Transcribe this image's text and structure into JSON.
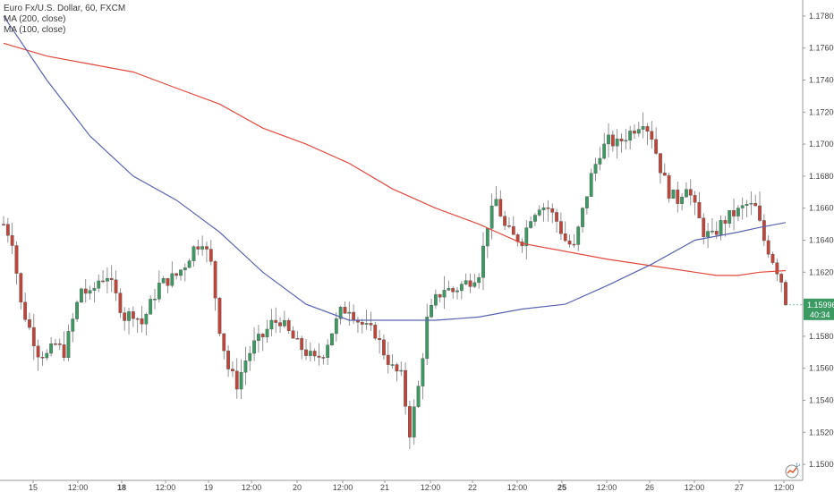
{
  "header": {
    "symbol_line": "Euro Fx/U.S. Dollar, 60, FXCM",
    "indicator_1": "MA (200, close)",
    "indicator_2": "MA (100, close)"
  },
  "badges": {
    "price": "1.15996",
    "countdown": "40:34",
    "logo_count": "14"
  },
  "colors": {
    "up_candle": "#3a9a62",
    "down_candle": "#c24438",
    "wick": "#777777",
    "ma200": "#e04a3f",
    "ma100": "#5a63b0",
    "price_badge": "#3a9a62",
    "grid": "#e6e6e6"
  },
  "chart_data": {
    "type": "candlestick",
    "symbol": "Euro Fx/U.S. Dollar",
    "timeframe": "60",
    "source": "FXCM",
    "ylim": [
      1.149,
      1.179
    ],
    "y_ticks": [
      "1.15000",
      "1.15200",
      "1.15400",
      "1.15600",
      "1.15800",
      "1.16000",
      "1.16200",
      "1.16400",
      "1.16600",
      "1.16800",
      "1.17000",
      "1.17200",
      "1.17400",
      "1.17600",
      "1.17800"
    ],
    "x_ticks": [
      {
        "label": "15",
        "bold": false
      },
      {
        "label": "12:00",
        "bold": false
      },
      {
        "label": "18",
        "bold": true
      },
      {
        "label": "12:00",
        "bold": false
      },
      {
        "label": "19",
        "bold": false
      },
      {
        "label": "12:00",
        "bold": false
      },
      {
        "label": "20",
        "bold": false
      },
      {
        "label": "12:00",
        "bold": false
      },
      {
        "label": "21",
        "bold": false
      },
      {
        "label": "12:00",
        "bold": false
      },
      {
        "label": "22",
        "bold": false
      },
      {
        "label": "12:00",
        "bold": false
      },
      {
        "label": "25",
        "bold": true
      },
      {
        "label": "12:00",
        "bold": false
      },
      {
        "label": "26",
        "bold": false
      },
      {
        "label": "12:00",
        "bold": false
      },
      {
        "label": "27",
        "bold": false
      },
      {
        "label": "12:00",
        "bold": false
      }
    ],
    "last_price": 1.15996,
    "close_path": [
      [
        0,
        1.165
      ],
      [
        2,
        1.164
      ],
      [
        4,
        1.16
      ],
      [
        6,
        1.1585
      ],
      [
        8,
        1.157
      ],
      [
        10,
        1.1568
      ],
      [
        12,
        1.1575
      ],
      [
        14,
        1.157
      ],
      [
        16,
        1.159
      ],
      [
        18,
        1.161
      ],
      [
        20,
        1.1605
      ],
      [
        22,
        1.1615
      ],
      [
        24,
        1.1618
      ],
      [
        26,
        1.1605
      ],
      [
        28,
        1.1592
      ],
      [
        30,
        1.1595
      ],
      [
        32,
        1.1588
      ],
      [
        34,
        1.16
      ],
      [
        36,
        1.1612
      ],
      [
        38,
        1.1615
      ],
      [
        40,
        1.1618
      ],
      [
        42,
        1.1625
      ],
      [
        44,
        1.1635
      ],
      [
        46,
        1.164
      ],
      [
        48,
        1.1625
      ],
      [
        50,
        1.1585
      ],
      [
        52,
        1.156
      ],
      [
        54,
        1.155
      ],
      [
        56,
        1.1565
      ],
      [
        58,
        1.1575
      ],
      [
        60,
        1.158
      ],
      [
        62,
        1.1588
      ],
      [
        64,
        1.159
      ],
      [
        66,
        1.1582
      ],
      [
        68,
        1.1575
      ],
      [
        70,
        1.157
      ],
      [
        72,
        1.1565
      ],
      [
        74,
        1.157
      ],
      [
        76,
        1.1583
      ],
      [
        78,
        1.1595
      ],
      [
        80,
        1.1598
      ],
      [
        82,
        1.159
      ],
      [
        84,
        1.1585
      ],
      [
        86,
        1.1582
      ],
      [
        88,
        1.157
      ],
      [
        90,
        1.156
      ],
      [
        92,
        1.1555
      ],
      [
        94,
        1.152
      ],
      [
        96,
        1.1548
      ],
      [
        98,
        1.159
      ],
      [
        100,
        1.1603
      ],
      [
        102,
        1.161
      ],
      [
        104,
        1.1608
      ],
      [
        106,
        1.1612
      ],
      [
        108,
        1.1615
      ],
      [
        110,
        1.162
      ],
      [
        112,
        1.165
      ],
      [
        114,
        1.1665
      ],
      [
        116,
        1.1648
      ],
      [
        118,
        1.1642
      ],
      [
        120,
        1.164
      ],
      [
        122,
        1.1655
      ],
      [
        124,
        1.1662
      ],
      [
        126,
        1.166
      ],
      [
        128,
        1.1652
      ],
      [
        130,
        1.164
      ],
      [
        132,
        1.1635
      ],
      [
        134,
        1.1658
      ],
      [
        136,
        1.168
      ],
      [
        138,
        1.1695
      ],
      [
        140,
        1.1702
      ],
      [
        142,
        1.17
      ],
      [
        144,
        1.1705
      ],
      [
        146,
        1.171
      ],
      [
        148,
        1.1715
      ],
      [
        150,
        1.1705
      ],
      [
        152,
        1.1685
      ],
      [
        154,
        1.167
      ],
      [
        156,
        1.1665
      ],
      [
        158,
        1.1675
      ],
      [
        160,
        1.166
      ],
      [
        162,
        1.1645
      ],
      [
        164,
        1.1642
      ],
      [
        166,
        1.165
      ],
      [
        168,
        1.1655
      ],
      [
        170,
        1.1658
      ],
      [
        172,
        1.1662
      ],
      [
        174,
        1.166
      ],
      [
        176,
        1.164
      ],
      [
        178,
        1.1628
      ],
      [
        180,
        1.1615
      ],
      [
        181,
        1.16
      ]
    ],
    "ma200": [
      [
        0,
        1.1763
      ],
      [
        10,
        1.1755
      ],
      [
        20,
        1.175
      ],
      [
        30,
        1.1745
      ],
      [
        40,
        1.1735
      ],
      [
        50,
        1.1725
      ],
      [
        60,
        1.171
      ],
      [
        70,
        1.17
      ],
      [
        80,
        1.1688
      ],
      [
        90,
        1.1672
      ],
      [
        100,
        1.166
      ],
      [
        110,
        1.165
      ],
      [
        120,
        1.1638
      ],
      [
        130,
        1.1633
      ],
      [
        140,
        1.1628
      ],
      [
        150,
        1.1624
      ],
      [
        160,
        1.162
      ],
      [
        165,
        1.1618
      ],
      [
        170,
        1.1618
      ],
      [
        175,
        1.162
      ],
      [
        181,
        1.1621
      ]
    ],
    "ma100": [
      [
        0,
        1.178
      ],
      [
        10,
        1.174
      ],
      [
        20,
        1.1705
      ],
      [
        30,
        1.168
      ],
      [
        40,
        1.1665
      ],
      [
        50,
        1.1645
      ],
      [
        60,
        1.162
      ],
      [
        70,
        1.16
      ],
      [
        80,
        1.159
      ],
      [
        90,
        1.159
      ],
      [
        100,
        1.159
      ],
      [
        110,
        1.1592
      ],
      [
        120,
        1.1597
      ],
      [
        130,
        1.16
      ],
      [
        140,
        1.1612
      ],
      [
        150,
        1.1625
      ],
      [
        160,
        1.164
      ],
      [
        170,
        1.1645
      ],
      [
        175,
        1.1648
      ],
      [
        181,
        1.1651
      ]
    ]
  }
}
